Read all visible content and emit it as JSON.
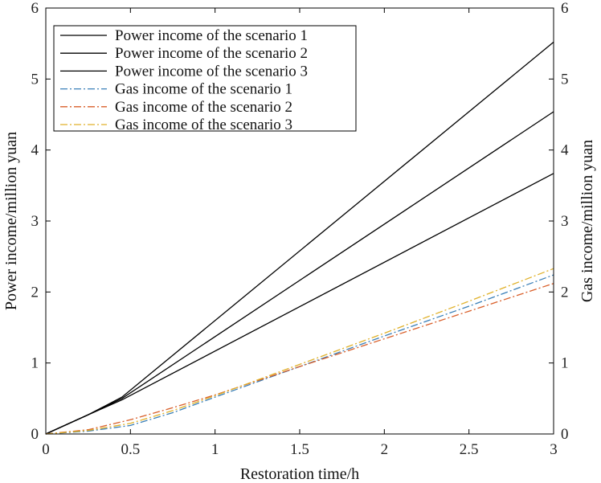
{
  "chart_data": {
    "type": "line",
    "title": "",
    "xlabel": "Restoration time/h",
    "ylabel": "Power income/million yuan",
    "y2label": "Gas income/million yuan",
    "xlim": [
      0,
      3
    ],
    "ylim": [
      0,
      6
    ],
    "y2lim": [
      0,
      6
    ],
    "xticks": [
      "0",
      "0.5",
      "1",
      "1.5",
      "2",
      "2.5",
      "3"
    ],
    "yticks": [
      "0",
      "1",
      "2",
      "3",
      "4",
      "5",
      "6"
    ],
    "y2ticks": [
      "0",
      "1",
      "2",
      "3",
      "4",
      "5",
      "6"
    ],
    "grid": false,
    "legend_position": "top-left",
    "series": [
      {
        "name": "Power income of the scenario 1",
        "axis": "left",
        "color": "#000000",
        "style": "solid",
        "x": [
          0,
          0.25,
          0.45,
          3
        ],
        "y": [
          0,
          0.27,
          0.52,
          5.52
        ]
      },
      {
        "name": "Power income of the scenario 2",
        "axis": "left",
        "color": "#000000",
        "style": "solid",
        "x": [
          0,
          0.25,
          0.45,
          3
        ],
        "y": [
          0,
          0.27,
          0.5,
          4.54
        ]
      },
      {
        "name": "Power income of the scenario 3",
        "axis": "left",
        "color": "#000000",
        "style": "solid",
        "x": [
          0,
          0.25,
          0.45,
          3
        ],
        "y": [
          0,
          0.27,
          0.48,
          3.67
        ]
      },
      {
        "name": "Gas income of the scenario 1",
        "axis": "right",
        "color": "#3a7fb8",
        "style": "dashdot",
        "x": [
          0,
          0.25,
          0.5,
          0.75,
          1,
          1.5,
          2,
          2.5,
          3
        ],
        "y": [
          0,
          0.04,
          0.12,
          0.3,
          0.52,
          0.95,
          1.38,
          1.8,
          2.24
        ]
      },
      {
        "name": "Gas income of the scenario 2",
        "axis": "right",
        "color": "#d95f2a",
        "style": "dashdot",
        "x": [
          0,
          0.25,
          0.5,
          0.75,
          1,
          1.5,
          2,
          2.5,
          3
        ],
        "y": [
          0,
          0.06,
          0.2,
          0.37,
          0.55,
          0.95,
          1.34,
          1.73,
          2.12
        ]
      },
      {
        "name": "Gas income of the scenario 3",
        "axis": "right",
        "color": "#e0b12a",
        "style": "dashdot",
        "x": [
          0,
          0.25,
          0.5,
          0.75,
          1,
          1.5,
          2,
          2.5,
          3
        ],
        "y": [
          0,
          0.05,
          0.15,
          0.33,
          0.54,
          0.98,
          1.42,
          1.87,
          2.33
        ]
      }
    ]
  }
}
